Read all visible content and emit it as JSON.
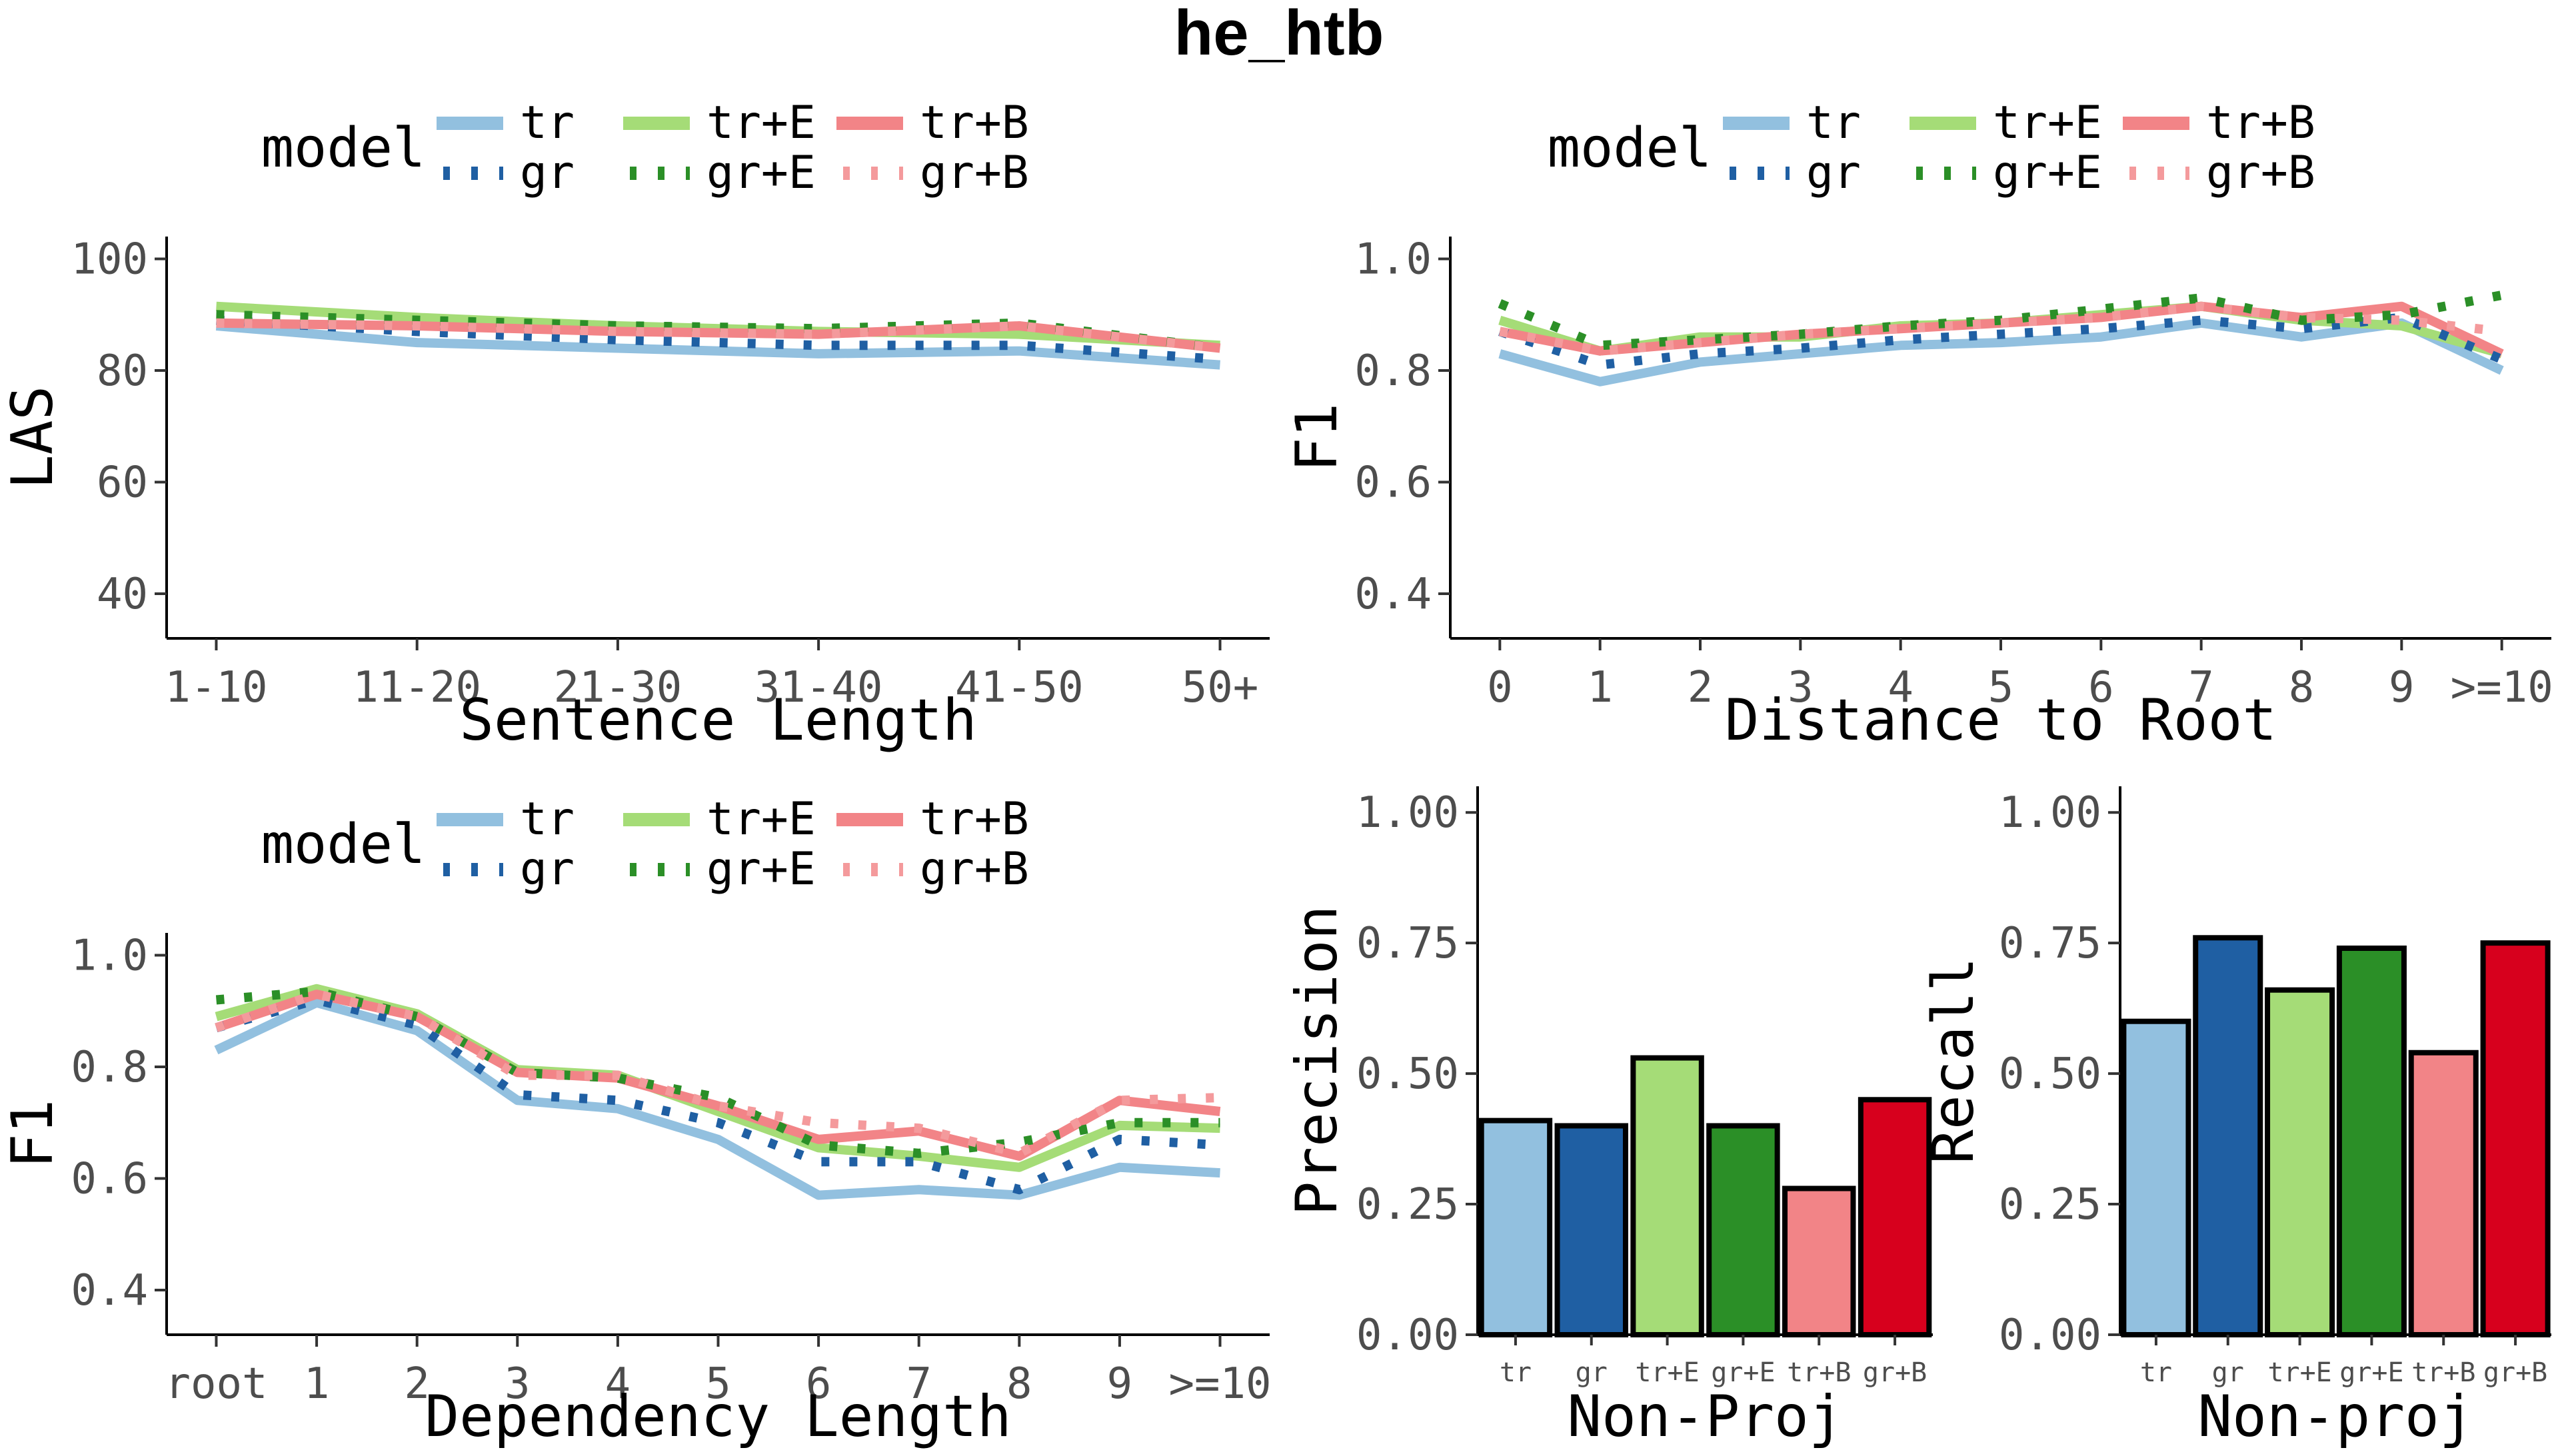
{
  "title": "he_htb",
  "legend": {
    "title": "model",
    "entries": [
      {
        "key": "tr",
        "label": "tr",
        "color": "#92c0df",
        "dashed": false
      },
      {
        "key": "gr",
        "label": "gr",
        "color": "#1f5fa3",
        "dashed": true
      },
      {
        "key": "trE",
        "label": "tr+E",
        "color": "#a5dc77",
        "dashed": false
      },
      {
        "key": "grE",
        "label": "gr+E",
        "color": "#2b8f27",
        "dashed": true
      },
      {
        "key": "trB",
        "label": "tr+B",
        "color": "#f28487",
        "dashed": false
      },
      {
        "key": "grB",
        "label": "gr+B",
        "color": "#f49a9c",
        "dashed": true
      }
    ]
  },
  "chart_data": [
    {
      "id": "sentlen",
      "type": "line",
      "xlabel": "Sentence Length",
      "ylabel": "LAS",
      "categories": [
        "1-10",
        "11-20",
        "21-30",
        "31-40",
        "41-50",
        "50+"
      ],
      "ylim": [
        32,
        104
      ],
      "yticks": [
        40,
        60,
        80,
        100
      ],
      "ytick_labels": [
        "40",
        "60",
        "80",
        "100"
      ],
      "series": [
        {
          "key": "tr",
          "values": [
            88,
            85,
            84,
            83,
            83.5,
            81
          ]
        },
        {
          "key": "gr",
          "values": [
            89,
            87,
            85.5,
            84.5,
            84.5,
            82
          ]
        },
        {
          "key": "trE",
          "values": [
            91.5,
            89.5,
            88,
            87,
            86.5,
            84.5
          ]
        },
        {
          "key": "grE",
          "values": [
            90,
            89,
            88,
            87.5,
            88.5,
            84
          ]
        },
        {
          "key": "trB",
          "values": [
            88.5,
            88,
            87,
            86.5,
            88,
            84
          ]
        },
        {
          "key": "grB",
          "values": [
            88.5,
            88,
            87,
            86.5,
            88,
            84
          ]
        }
      ]
    },
    {
      "id": "rootdist",
      "type": "line",
      "xlabel": "Distance to Root",
      "ylabel": "F1",
      "categories": [
        "0",
        "1",
        "2",
        "3",
        "4",
        "5",
        "6",
        "7",
        "8",
        "9",
        ">=10"
      ],
      "ylim": [
        0.32,
        1.04
      ],
      "yticks": [
        0.4,
        0.6,
        0.8,
        1.0
      ],
      "ytick_labels": [
        "0.4",
        "0.6",
        "0.8",
        "1.0"
      ],
      "series": [
        {
          "key": "tr",
          "values": [
            0.83,
            0.78,
            0.815,
            0.83,
            0.845,
            0.85,
            0.86,
            0.885,
            0.86,
            0.885,
            0.8
          ]
        },
        {
          "key": "gr",
          "values": [
            0.87,
            0.81,
            0.83,
            0.84,
            0.855,
            0.865,
            0.875,
            0.89,
            0.875,
            0.895,
            0.82
          ]
        },
        {
          "key": "trE",
          "values": [
            0.89,
            0.835,
            0.86,
            0.86,
            0.88,
            0.885,
            0.9,
            0.915,
            0.89,
            0.88,
            0.83
          ]
        },
        {
          "key": "grE",
          "values": [
            0.92,
            0.845,
            0.855,
            0.865,
            0.88,
            0.89,
            0.91,
            0.93,
            0.89,
            0.9,
            0.935
          ]
        },
        {
          "key": "trB",
          "values": [
            0.87,
            0.835,
            0.85,
            0.865,
            0.875,
            0.885,
            0.895,
            0.915,
            0.895,
            0.915,
            0.83
          ]
        },
        {
          "key": "grB",
          "values": [
            0.87,
            0.835,
            0.85,
            0.865,
            0.875,
            0.885,
            0.895,
            0.915,
            0.895,
            0.89,
            0.87
          ]
        }
      ]
    },
    {
      "id": "deplen",
      "type": "line",
      "xlabel": "Dependency Length",
      "ylabel": "F1",
      "categories": [
        "root",
        "1",
        "2",
        "3",
        "4",
        "5",
        "6",
        "7",
        "8",
        "9",
        ">=10"
      ],
      "ylim": [
        0.32,
        1.04
      ],
      "yticks": [
        0.4,
        0.6,
        0.8,
        1.0
      ],
      "ytick_labels": [
        "0.4",
        "0.6",
        "0.8",
        "1.0"
      ],
      "series": [
        {
          "key": "tr",
          "values": [
            0.83,
            0.915,
            0.865,
            0.74,
            0.725,
            0.67,
            0.57,
            0.58,
            0.57,
            0.62,
            0.61
          ]
        },
        {
          "key": "gr",
          "values": [
            0.87,
            0.92,
            0.875,
            0.75,
            0.74,
            0.7,
            0.63,
            0.63,
            0.58,
            0.67,
            0.66
          ]
        },
        {
          "key": "trE",
          "values": [
            0.89,
            0.94,
            0.895,
            0.795,
            0.785,
            0.72,
            0.655,
            0.64,
            0.62,
            0.695,
            0.69
          ]
        },
        {
          "key": "grE",
          "values": [
            0.92,
            0.935,
            0.89,
            0.79,
            0.78,
            0.745,
            0.66,
            0.645,
            0.665,
            0.7,
            0.7
          ]
        },
        {
          "key": "trB",
          "values": [
            0.87,
            0.93,
            0.89,
            0.79,
            0.78,
            0.73,
            0.67,
            0.685,
            0.64,
            0.74,
            0.72
          ]
        },
        {
          "key": "grB",
          "values": [
            0.87,
            0.93,
            0.89,
            0.785,
            0.785,
            0.73,
            0.7,
            0.69,
            0.645,
            0.74,
            0.745
          ]
        }
      ]
    },
    {
      "id": "precision",
      "type": "bar",
      "xlabel": "Non-Proj",
      "ylabel": "Precision",
      "categories": [
        "tr",
        "gr",
        "tr+E",
        "gr+E",
        "tr+B",
        "gr+B"
      ],
      "values": [
        0.41,
        0.4,
        0.53,
        0.4,
        0.28,
        0.45
      ],
      "colors": [
        "#92c0df",
        "#1f5fa3",
        "#a5dc77",
        "#2b8f27",
        "#f28487",
        "#d7001d"
      ],
      "ylim": [
        0,
        1.05
      ],
      "yticks": [
        0,
        0.25,
        0.5,
        0.75,
        1.0
      ],
      "ytick_labels": [
        "0.00",
        "0.25",
        "0.50",
        "0.75",
        "1.00"
      ]
    },
    {
      "id": "recall",
      "type": "bar",
      "xlabel": "Non-proj",
      "ylabel": "Recall",
      "categories": [
        "tr",
        "gr",
        "tr+E",
        "gr+E",
        "tr+B",
        "gr+B"
      ],
      "values": [
        0.6,
        0.76,
        0.66,
        0.74,
        0.54,
        0.75
      ],
      "colors": [
        "#92c0df",
        "#1f5fa3",
        "#a5dc77",
        "#2b8f27",
        "#f28487",
        "#d7001d"
      ],
      "ylim": [
        0,
        1.05
      ],
      "yticks": [
        0,
        0.25,
        0.5,
        0.75,
        1.0
      ],
      "ytick_labels": [
        "0.00",
        "0.25",
        "0.50",
        "0.75",
        "1.00"
      ]
    }
  ]
}
